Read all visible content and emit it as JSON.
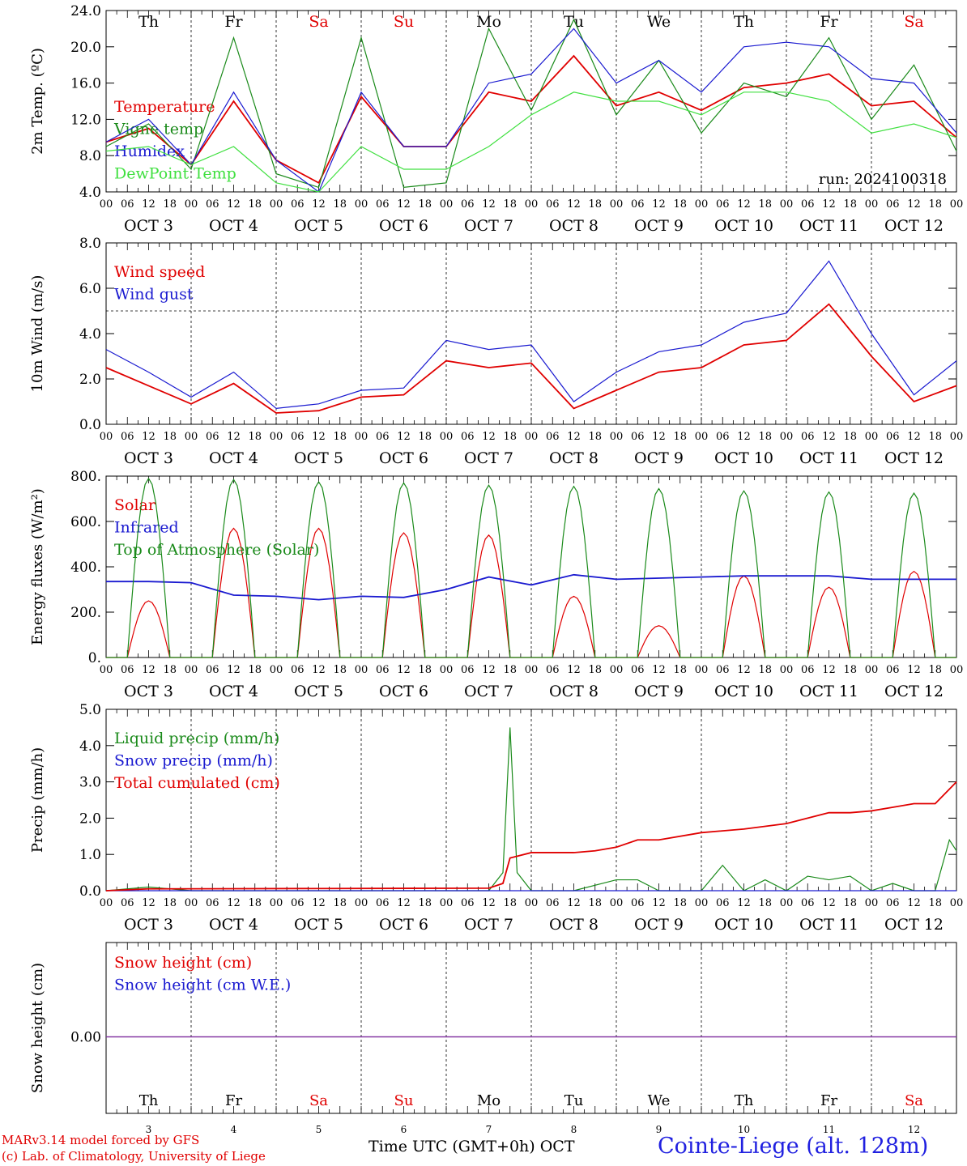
{
  "days": [
    "Th",
    "Fr",
    "Sa",
    "Su",
    "Mo",
    "Tu",
    "We",
    "Th",
    "Fr",
    "Sa"
  ],
  "day_colors": [
    "#000000",
    "#000000",
    "#e00000",
    "#e00000",
    "#000000",
    "#000000",
    "#000000",
    "#000000",
    "#000000",
    "#e00000"
  ],
  "date_labels": [
    "OCT  3",
    "OCT  4",
    "OCT  5",
    "OCT  6",
    "OCT  7",
    "OCT  8",
    "OCT  9",
    "OCT 10",
    "OCT 11",
    "OCT 12"
  ],
  "date_numbers": [
    "3",
    "4",
    "5",
    "6",
    "7",
    "8",
    "9",
    "10",
    "11",
    "12"
  ],
  "hour_ticks": [
    "00",
    "06",
    "12",
    "18"
  ],
  "colors": {
    "red": "#e00000",
    "green": "#1a8a1a",
    "blue": "#1a1ad0",
    "lightgreen": "#40e040",
    "purple": "#8030a0"
  },
  "footer": {
    "model": "MARv3.14 model forced by GFS",
    "copyright": "(c) Lab. of Climatology, University of Liege",
    "axis_label": "Time UTC (GMT+0h) OCT",
    "station": "Cointe-Liege (alt. 128m)"
  },
  "chart_data": [
    {
      "type": "line",
      "ylabel": "2m Temp. (ºC)",
      "ylim": [
        4,
        24
      ],
      "yticks": [
        "4.0",
        "8.0",
        "12.0",
        "16.0",
        "20.0",
        "24.0"
      ],
      "annotation": "run: 2024100318",
      "x_hours": [
        0,
        12,
        24,
        36,
        48,
        60,
        72,
        84,
        96,
        108,
        120,
        132,
        144,
        156,
        168,
        180,
        192,
        204,
        216,
        228,
        240
      ],
      "series": [
        {
          "name": "Temperature",
          "color": "#e00000",
          "values": [
            9.5,
            11,
            7,
            14,
            7.5,
            5,
            14.5,
            9,
            9,
            15,
            14,
            19,
            13.5,
            15,
            13,
            15.5,
            16,
            17,
            13.5,
            14,
            10
          ]
        },
        {
          "name": "Vigne temp",
          "color": "#1a8a1a",
          "values": [
            9,
            11.5,
            6.5,
            21,
            6,
            4.5,
            21,
            4.5,
            5,
            22,
            13,
            23,
            12.5,
            18.5,
            10.5,
            16,
            14.5,
            21,
            12,
            18,
            8.5
          ]
        },
        {
          "name": "Humidex",
          "color": "#1a1ad0",
          "values": [
            9.5,
            12,
            7,
            15,
            7.5,
            4,
            15,
            9,
            9,
            16,
            17,
            22,
            16,
            18.5,
            15,
            20,
            20.5,
            20,
            16.5,
            16,
            10.5
          ]
        },
        {
          "name": "DewPoint Temp",
          "color": "#40e040",
          "values": [
            8.5,
            9,
            7,
            9,
            5,
            4,
            9,
            6.5,
            6.5,
            9,
            12.5,
            15,
            14,
            14,
            12.5,
            15,
            15,
            14,
            10.5,
            11.5,
            10
          ]
        }
      ]
    },
    {
      "type": "line",
      "ylabel": "10m Wind (m/s)",
      "ylim": [
        0,
        8
      ],
      "yticks": [
        "0.0",
        "2.0",
        "4.0",
        "6.0",
        "8.0"
      ],
      "reference_line": 5,
      "x_hours": [
        0,
        12,
        24,
        36,
        48,
        60,
        72,
        84,
        96,
        108,
        120,
        132,
        144,
        156,
        168,
        180,
        192,
        204,
        216,
        228,
        240
      ],
      "series": [
        {
          "name": "Wind speed",
          "color": "#e00000",
          "values": [
            2.5,
            1.7,
            0.9,
            1.8,
            0.5,
            0.6,
            1.2,
            1.3,
            2.8,
            2.5,
            2.7,
            0.7,
            1.5,
            2.3,
            2.5,
            3.5,
            3.7,
            5.3,
            3,
            1,
            1.7
          ]
        },
        {
          "name": "Wind gust",
          "color": "#1a1ad0",
          "values": [
            3.3,
            2.3,
            1.2,
            2.3,
            0.7,
            0.9,
            1.5,
            1.6,
            3.7,
            3.3,
            3.5,
            1,
            2.3,
            3.2,
            3.5,
            4.5,
            4.9,
            7.2,
            4,
            1.3,
            2.8
          ]
        }
      ]
    },
    {
      "type": "line",
      "ylabel": "Energy fluxes (W/m²)",
      "ylim": [
        0,
        800
      ],
      "yticks": [
        "0.",
        "200.",
        "400.",
        "600.",
        "800."
      ],
      "series": [
        {
          "name": "Solar",
          "color": "#e00000",
          "peaks": [
            250,
            570,
            570,
            550,
            540,
            270,
            140,
            360,
            310,
            380
          ]
        },
        {
          "name": "Infrared",
          "color": "#1a1ad0",
          "x_hours": [
            0,
            12,
            24,
            36,
            48,
            60,
            72,
            84,
            96,
            108,
            120,
            132,
            144,
            156,
            168,
            180,
            192,
            204,
            216,
            228,
            240
          ],
          "values": [
            335,
            335,
            330,
            275,
            270,
            255,
            270,
            265,
            300,
            355,
            320,
            365,
            345,
            350,
            355,
            360,
            360,
            360,
            345,
            345,
            345
          ]
        },
        {
          "name": "Top of Atmosphere (Solar)",
          "color": "#1a8a1a",
          "peaks": [
            790,
            785,
            775,
            770,
            760,
            755,
            745,
            735,
            730,
            725
          ]
        }
      ]
    },
    {
      "type": "line",
      "ylabel": "Precip (mm/h)",
      "ylim": [
        0,
        5
      ],
      "yticks": [
        "0.0",
        "1.0",
        "2.0",
        "3.0",
        "4.0",
        "5.0"
      ],
      "series": [
        {
          "name": "Liquid precip (mm/h)",
          "color": "#1a8a1a",
          "x_hours": [
            0,
            12,
            24,
            96,
            108,
            112,
            114,
            116,
            120,
            132,
            144,
            150,
            156,
            168,
            174,
            180,
            186,
            192,
            198,
            204,
            210,
            216,
            222,
            228,
            234,
            238,
            240
          ],
          "values": [
            0,
            0.1,
            0,
            0,
            0,
            0.5,
            4.5,
            0.5,
            0,
            0,
            0.3,
            0.3,
            0,
            0,
            0.7,
            0,
            0.3,
            0,
            0.4,
            0.3,
            0.4,
            0,
            0.2,
            0,
            0,
            1.4,
            1.1
          ]
        },
        {
          "name": "Snow precip (mm/h)",
          "color": "#1a1ad0",
          "x_hours": [
            0,
            240
          ],
          "values": [
            0,
            0
          ]
        },
        {
          "name": "Total cumulated (cm)",
          "color": "#e00000",
          "x_hours": [
            0,
            12,
            108,
            112,
            114,
            120,
            132,
            138,
            144,
            150,
            156,
            168,
            180,
            192,
            198,
            204,
            210,
            216,
            222,
            228,
            234,
            240
          ],
          "values": [
            0,
            0.05,
            0.07,
            0.2,
            0.9,
            1.05,
            1.05,
            1.1,
            1.2,
            1.4,
            1.4,
            1.6,
            1.7,
            1.85,
            2.0,
            2.15,
            2.15,
            2.2,
            2.3,
            2.4,
            2.4,
            3.0
          ]
        }
      ]
    },
    {
      "type": "line",
      "ylabel": "Snow height (cm)",
      "yticks": [
        "0.00"
      ],
      "series": [
        {
          "name": "Snow height (cm)",
          "color": "#e00000",
          "x_hours": [
            0,
            240
          ],
          "values": [
            0,
            0
          ]
        },
        {
          "name": "Snow height (cm W.E.)",
          "color": "#1a1ad0",
          "x_hours": [
            0,
            240
          ],
          "values": [
            0,
            0
          ]
        }
      ]
    }
  ]
}
